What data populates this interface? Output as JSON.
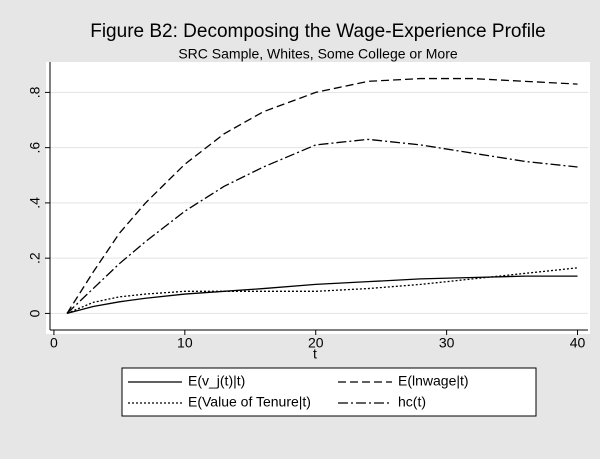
{
  "chart_data": {
    "type": "line",
    "title": "Figure B2: Decomposing the Wage-Experience Profile",
    "subtitle": "SRC Sample, Whites, Some College or More",
    "x_label": "t",
    "x": [
      1,
      3,
      5,
      7,
      10,
      13,
      16,
      20,
      24,
      28,
      32,
      36,
      40
    ],
    "series": [
      {
        "name": "E(v_j(t)|t)",
        "color": "#000000",
        "dash": "solid",
        "values": [
          0,
          0.025,
          0.042,
          0.055,
          0.07,
          0.08,
          0.09,
          0.105,
          0.115,
          0.125,
          0.13,
          0.135,
          0.135
        ]
      },
      {
        "name": "E(lnwage|t)",
        "color": "#000000",
        "dash": "dashed",
        "values": [
          0,
          0.15,
          0.29,
          0.4,
          0.54,
          0.65,
          0.73,
          0.8,
          0.84,
          0.85,
          0.85,
          0.84,
          0.83
        ]
      },
      {
        "name": "E(Value of Tenure|t)",
        "color": "#000000",
        "dash": "dotted",
        "values": [
          0,
          0.04,
          0.06,
          0.07,
          0.08,
          0.08,
          0.08,
          0.08,
          0.09,
          0.105,
          0.125,
          0.145,
          0.165
        ]
      },
      {
        "name": "hc(t)",
        "color": "#000000",
        "dash": "dashdot",
        "values": [
          0,
          0.09,
          0.18,
          0.26,
          0.37,
          0.46,
          0.53,
          0.61,
          0.63,
          0.61,
          0.58,
          0.55,
          0.53
        ]
      }
    ],
    "xlim": [
      -0.3,
      40.8
    ],
    "ylim": [
      -0.06,
      0.91
    ],
    "xticks": [
      0,
      10,
      20,
      30,
      40
    ],
    "yticks": [
      0,
      {
        "value": 0.2,
        "label": ".2"
      },
      {
        "value": 0.4,
        "label": ".4"
      },
      {
        "value": 0.6,
        "label": ".6"
      },
      {
        "value": 0.8,
        "label": ".8"
      }
    ],
    "grid": true,
    "legend_position": "bottom"
  }
}
